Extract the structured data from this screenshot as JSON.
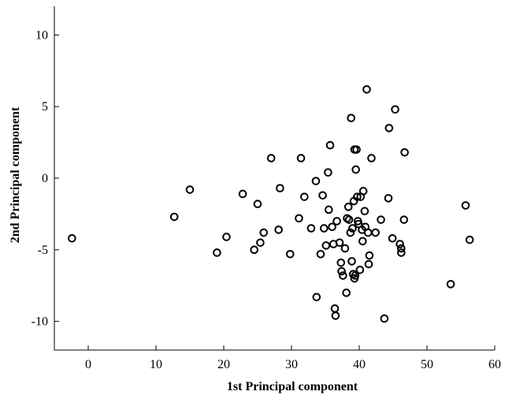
{
  "chart_data": {
    "type": "scatter",
    "title": "",
    "xlabel": "1st Principal component",
    "ylabel": "2nd Principal component",
    "xlim": [
      -5,
      60
    ],
    "ylim": [
      -12,
      12
    ],
    "xticks": [
      0,
      10,
      20,
      30,
      40,
      50,
      60
    ],
    "yticks": [
      -10,
      -5,
      0,
      5,
      10
    ],
    "grid": false,
    "marker": "open-circle",
    "marker_color": "#000000",
    "series": [
      {
        "points": [
          [
            -2.4,
            -4.2
          ],
          [
            12.7,
            -2.7
          ],
          [
            15.0,
            -0.8
          ],
          [
            19.0,
            -5.2
          ],
          [
            20.4,
            -4.1
          ],
          [
            22.8,
            -1.1
          ],
          [
            24.5,
            -5.0
          ],
          [
            25.0,
            -1.8
          ],
          [
            25.4,
            -4.5
          ],
          [
            25.9,
            -3.8
          ],
          [
            27.0,
            1.4
          ],
          [
            28.1,
            -3.6
          ],
          [
            28.3,
            -0.7
          ],
          [
            29.8,
            -5.3
          ],
          [
            31.1,
            -2.8
          ],
          [
            31.4,
            1.4
          ],
          [
            31.9,
            -1.3
          ],
          [
            32.9,
            -3.5
          ],
          [
            33.6,
            -0.2
          ],
          [
            33.7,
            -8.3
          ],
          [
            34.3,
            -5.3
          ],
          [
            34.6,
            -1.2
          ],
          [
            34.8,
            -3.5
          ],
          [
            35.1,
            -4.7
          ],
          [
            35.4,
            0.4
          ],
          [
            35.5,
            -2.2
          ],
          [
            35.7,
            2.3
          ],
          [
            36.0,
            -3.4
          ],
          [
            36.2,
            -4.6
          ],
          [
            36.4,
            -9.1
          ],
          [
            36.5,
            -9.6
          ],
          [
            36.7,
            -3.0
          ],
          [
            37.1,
            -4.5
          ],
          [
            37.3,
            -5.9
          ],
          [
            37.4,
            -6.5
          ],
          [
            37.6,
            -6.8
          ],
          [
            37.9,
            -4.9
          ],
          [
            38.1,
            -8.0
          ],
          [
            38.2,
            -2.8
          ],
          [
            38.4,
            -2.0
          ],
          [
            38.5,
            -2.9
          ],
          [
            38.7,
            -3.8
          ],
          [
            38.8,
            4.2
          ],
          [
            38.9,
            -5.8
          ],
          [
            39.0,
            -3.5
          ],
          [
            39.1,
            -6.7
          ],
          [
            39.2,
            -1.6
          ],
          [
            39.3,
            -7.0
          ],
          [
            39.3,
            2.0
          ],
          [
            39.4,
            -6.8
          ],
          [
            39.5,
            0.6
          ],
          [
            39.6,
            2.0
          ],
          [
            39.7,
            -1.3
          ],
          [
            39.8,
            -3.0
          ],
          [
            39.9,
            -3.2
          ],
          [
            40.1,
            -6.4
          ],
          [
            40.2,
            -1.3
          ],
          [
            40.4,
            -3.6
          ],
          [
            40.5,
            -4.4
          ],
          [
            40.6,
            -0.9
          ],
          [
            40.8,
            -2.3
          ],
          [
            40.9,
            -3.4
          ],
          [
            41.1,
            6.2
          ],
          [
            41.3,
            -3.8
          ],
          [
            41.4,
            -6.0
          ],
          [
            41.5,
            -5.4
          ],
          [
            41.8,
            1.4
          ],
          [
            42.4,
            -3.8
          ],
          [
            43.2,
            -2.9
          ],
          [
            43.7,
            -9.8
          ],
          [
            44.3,
            -1.4
          ],
          [
            44.4,
            3.5
          ],
          [
            44.9,
            -4.2
          ],
          [
            45.3,
            4.8
          ],
          [
            46.0,
            -4.6
          ],
          [
            46.2,
            -5.2
          ],
          [
            46.2,
            -4.9
          ],
          [
            46.6,
            -2.9
          ],
          [
            46.7,
            1.8
          ],
          [
            53.5,
            -7.4
          ],
          [
            55.7,
            -1.9
          ],
          [
            56.3,
            -4.3
          ]
        ]
      }
    ]
  }
}
